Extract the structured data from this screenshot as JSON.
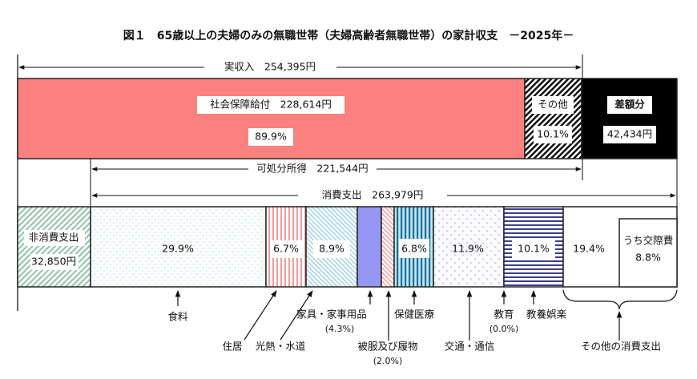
{
  "title": "図１　65歳以上の夫婦のみの無職世帯（夫婦高齢者無職世帯）の家計収支　－2025年－",
  "income": {
    "label": "実収入　254,395円",
    "social_security": {
      "label": "社会保障給付　228,614円",
      "share": "89.9%",
      "color": "#fb8080"
    },
    "other": {
      "label": "その他",
      "share": "10.1%"
    },
    "deficit": {
      "label": "差額分",
      "amount": "42,434円"
    }
  },
  "disposable_income": "可処分所得　221,544円",
  "consumption": {
    "label": "消費支出　263,979円",
    "non_consumption": {
      "label": "非消費支出",
      "amount": "32,850円"
    },
    "items": [
      {
        "name": "食料",
        "share": "29.9%"
      },
      {
        "name": "住居",
        "share": "6.7%"
      },
      {
        "name": "光熱・水道",
        "share": "8.9%"
      },
      {
        "name": "家具・家事用品",
        "share": "(4.3%)"
      },
      {
        "name": "被服及び履物",
        "share": "(2.0%)"
      },
      {
        "name": "保健医療",
        "share": "6.8%"
      },
      {
        "name": "交通・通信",
        "share": "11.9%"
      },
      {
        "name": "教育",
        "share": "(0.0%)"
      },
      {
        "name": "教養娯楽",
        "share": "10.1%"
      },
      {
        "name": "その他の消費支出",
        "share": "19.4%",
        "sub_label": "うち交際費",
        "sub_share": "8.8%"
      }
    ]
  }
}
